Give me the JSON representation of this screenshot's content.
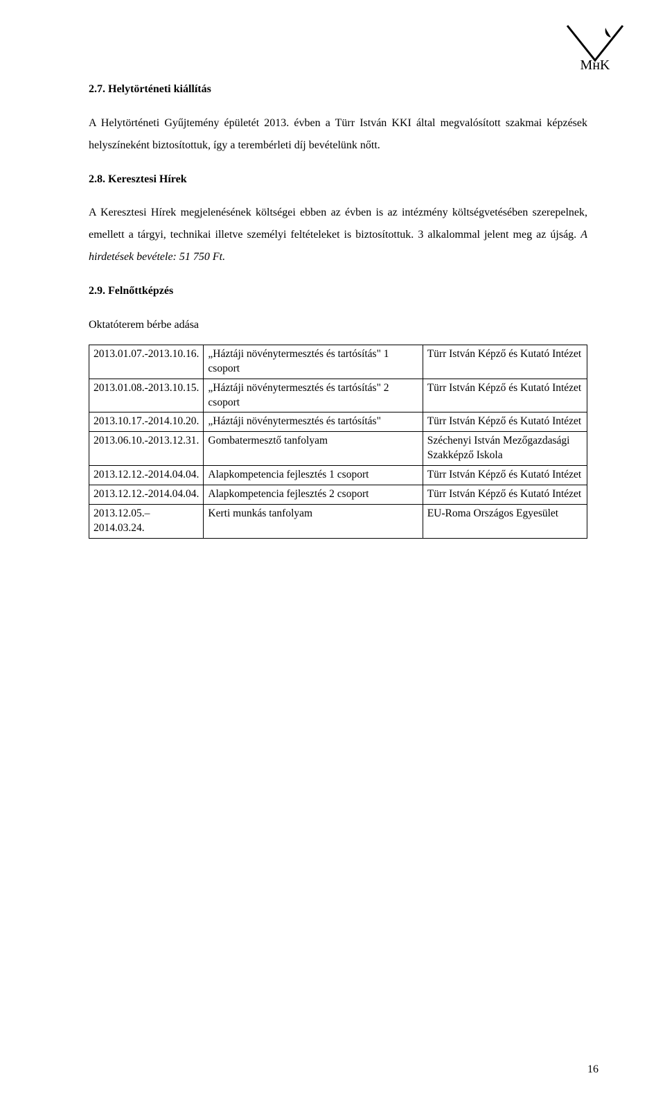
{
  "logo": {
    "text": "MнK",
    "color": "#000000"
  },
  "sections": {
    "s27": {
      "heading": "2.7. Helytörténeti kiállítás",
      "body": "A Helytörténeti Gyűjtemény épületét 2013. évben a Türr István KKI által megvalósított szakmai képzések helyszíneként biztosítottuk, így a terembérleti díj bevételünk nőtt."
    },
    "s28": {
      "heading": "2.8. Keresztesi Hírek",
      "body": "A Keresztesi Hírek megjelenésének költségei ebben az évben is az intézmény költségvetésében szerepelnek, emellett a tárgyi, technikai illetve személyi feltételeket is biztosítottuk. 3 alkalommal jelent meg az újság. ",
      "body_italic": "A hirdetések bevétele: 51 750 Ft."
    },
    "s29": {
      "heading": "2.9. Felnőttképzés",
      "sub": "Oktatóterem bérbe adása"
    }
  },
  "table": {
    "rows": [
      {
        "date": "2013.01.07.-2013.10.16.",
        "course": "„Háztáji növénytermesztés és tartósítás\" 1 csoport",
        "inst": "Türr István Képző és Kutató Intézet"
      },
      {
        "date": "2013.01.08.-2013.10.15.",
        "course": "„Háztáji növénytermesztés és tartósítás\" 2 csoport",
        "inst": "Türr István Képző és Kutató Intézet"
      },
      {
        "date": "2013.10.17.-2014.10.20.",
        "course": "„Háztáji növénytermesztés és tartósítás\"",
        "inst": "Türr István Képző és Kutató Intézet"
      },
      {
        "date": "2013.06.10.-2013.12.31.",
        "course": "Gombatermesztő tanfolyam",
        "inst": "Széchenyi István Mezőgazdasági Szakképző Iskola"
      },
      {
        "date": "2013.12.12.-2014.04.04.",
        "course": "Alapkompetencia fejlesztés 1 csoport",
        "inst": "Türr István Képző és Kutató Intézet"
      },
      {
        "date": "2013.12.12.-2014.04.04.",
        "course": "Alapkompetencia fejlesztés 2 csoport",
        "inst": "Türr István Képző és Kutató Intézet"
      },
      {
        "date": "2013.12.05.– 2014.03.24.",
        "course": "Kerti munkás tanfolyam",
        "inst": "EU-Roma Országos Egyesület"
      }
    ]
  },
  "pageNumber": "16"
}
